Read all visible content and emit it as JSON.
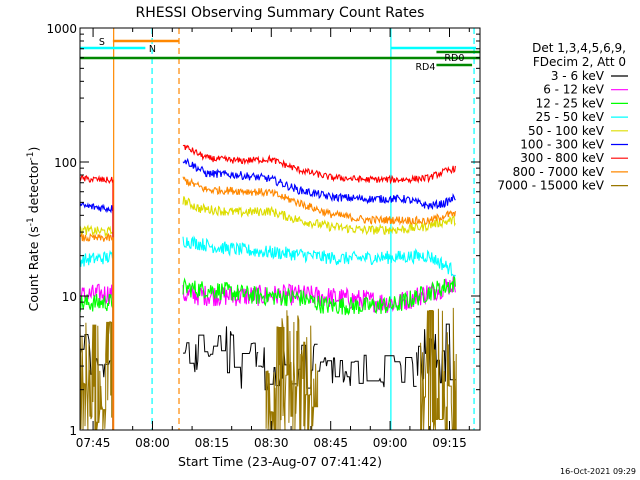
{
  "chart_data": {
    "type": "line",
    "title": "RHESSI Observing Summary Count Rates",
    "xlabel": "Start Time (23-Aug-07 07:41:42)",
    "ylabel_main": "Count Rate (s",
    "ylabel_sup": "-1",
    "ylabel_tail": " detector",
    "ylabel_close": ")",
    "y_scale": "log",
    "ylim": [
      1,
      1000
    ],
    "y_ticks": [
      {
        "v": 1,
        "label": "1"
      },
      {
        "v": 10,
        "label": "10"
      },
      {
        "v": 100,
        "label": "100"
      },
      {
        "v": 1000,
        "label": "1000"
      }
    ],
    "x_range_min": [
      0,
      101
    ],
    "x_ticks": [
      {
        "m": 3.3,
        "label": "07:45"
      },
      {
        "m": 18.3,
        "label": "08:00"
      },
      {
        "m": 33.3,
        "label": "08:15"
      },
      {
        "m": 48.3,
        "label": "08:30"
      },
      {
        "m": 63.3,
        "label": "08:45"
      },
      {
        "m": 78.3,
        "label": "09:00"
      },
      {
        "m": 93.3,
        "label": "09:15"
      }
    ],
    "legend_header": [
      "Det 1,3,4,5,6,9,",
      "FDecim 2, Att 0"
    ],
    "series": [
      {
        "name": "3 - 6 keV",
        "color": "#000000",
        "segments": [
          {
            "start": 0,
            "end": 8,
            "base": 3.5,
            "noise": 0.22,
            "step": 0.25
          },
          {
            "start": 26,
            "end": 45,
            "base": 3.6,
            "noise": 0.25,
            "step": 0.25
          },
          {
            "start": 45,
            "end": 60,
            "base": 3.0,
            "noise": 0.18,
            "step": 0.25
          },
          {
            "start": 60,
            "end": 85,
            "base": 2.75,
            "noise": 0.12,
            "step": 0.25
          },
          {
            "start": 85,
            "end": 95,
            "base": 3.8,
            "noise": 0.25,
            "step": 0.25
          }
        ]
      },
      {
        "name": "6 - 12 keV",
        "color": "#ff00ff",
        "points": [
          [
            0,
            10
          ],
          [
            8,
            10.5
          ],
          [
            26,
            10.2
          ],
          [
            40,
            10.0
          ],
          [
            55,
            10.2
          ],
          [
            70,
            9.4
          ],
          [
            80,
            8.8
          ],
          [
            90,
            11.2
          ],
          [
            95,
            12.5
          ]
        ],
        "noise": 0.08
      },
      {
        "name": "12 - 25 keV",
        "color": "#00ff00",
        "points": [
          [
            0,
            8.8
          ],
          [
            8,
            9.0
          ],
          [
            26,
            11.5
          ],
          [
            35,
            11.0
          ],
          [
            45,
            10.0
          ],
          [
            55,
            9.8
          ],
          [
            62,
            8.5
          ],
          [
            72,
            8.4
          ],
          [
            80,
            8.6
          ],
          [
            90,
            11.2
          ],
          [
            95,
            12.5
          ]
        ],
        "noise": 0.07
      },
      {
        "name": "25 - 50 keV",
        "color": "#00ffff",
        "points": [
          [
            0,
            18.5
          ],
          [
            8,
            19.5
          ],
          [
            26,
            26
          ],
          [
            35,
            23
          ],
          [
            45,
            21.5
          ],
          [
            55,
            20.5
          ],
          [
            65,
            19
          ],
          [
            80,
            19.5
          ],
          [
            88,
            20
          ],
          [
            95,
            15
          ]
        ],
        "noise": 0.05
      },
      {
        "name": "50 - 100 keV",
        "color": "#dddd00",
        "points": [
          [
            0,
            31
          ],
          [
            8,
            30
          ],
          [
            26,
            52
          ],
          [
            30,
            45
          ],
          [
            40,
            42
          ],
          [
            48,
            43
          ],
          [
            55,
            37
          ],
          [
            63,
            33
          ],
          [
            72,
            31
          ],
          [
            82,
            31.5
          ],
          [
            87,
            33
          ],
          [
            90,
            35
          ],
          [
            95,
            37
          ]
        ],
        "noise": 0.035
      },
      {
        "name": "100 - 300 keV",
        "color": "#0000ff",
        "points": [
          [
            0,
            47
          ],
          [
            8,
            45
          ],
          [
            26,
            105
          ],
          [
            32,
            82
          ],
          [
            40,
            80
          ],
          [
            48,
            75
          ],
          [
            55,
            62
          ],
          [
            63,
            55
          ],
          [
            72,
            53
          ],
          [
            82,
            53
          ],
          [
            88,
            47
          ],
          [
            92,
            49
          ],
          [
            95,
            55
          ]
        ],
        "noise": 0.03
      },
      {
        "name": "300 - 800 keV",
        "color": "#ff0000",
        "points": [
          [
            0,
            75
          ],
          [
            8,
            73
          ],
          [
            26,
            132
          ],
          [
            32,
            107
          ],
          [
            40,
            102
          ],
          [
            48,
            105
          ],
          [
            55,
            88
          ],
          [
            63,
            77
          ],
          [
            72,
            74
          ],
          [
            82,
            74
          ],
          [
            88,
            76
          ],
          [
            92,
            85
          ],
          [
            95,
            90
          ]
        ],
        "noise": 0.025
      },
      {
        "name": "800 - 7000 keV",
        "color": "#ff8800",
        "points": [
          [
            0,
            27
          ],
          [
            8,
            27
          ],
          [
            26,
            74
          ],
          [
            32,
            62
          ],
          [
            40,
            61
          ],
          [
            48,
            59
          ],
          [
            55,
            50
          ],
          [
            63,
            41
          ],
          [
            72,
            37
          ],
          [
            82,
            37
          ],
          [
            88,
            36
          ],
          [
            92,
            40
          ],
          [
            95,
            41
          ]
        ],
        "noise": 0.03
      },
      {
        "name": "7000 - 15000 keV",
        "color": "#997700",
        "segments": [
          {
            "start": 0,
            "end": 8,
            "base": 2.2,
            "noise": 0.5,
            "step": 0.25
          },
          {
            "start": 47,
            "end": 60,
            "base": 2.0,
            "noise": 0.6,
            "step": 0.25
          },
          {
            "start": 86,
            "end": 95,
            "base": 2.1,
            "noise": 0.6,
            "step": 0.25
          }
        ]
      }
    ],
    "markers": {
      "saa_label": "S",
      "saa_color": "#ff8800",
      "saa_start": 8.3,
      "saa_end": 25.0,
      "night_label": "N",
      "night_color": "#00ffff",
      "night_intervals": [
        [
          0,
          16.5
        ],
        [
          78.5,
          100
        ]
      ],
      "night_bar_x_start": 16.5,
      "green_bar_color": "#008800",
      "green_bar_range": [
        0,
        101
      ],
      "rd0_label": "RD0",
      "rd0_start": 90,
      "rd0_end": 101,
      "rd4_label": "RD4",
      "rd4_start": 90,
      "rd4_end": 99,
      "dashed_lines": [
        {
          "m": 8.5,
          "color": "#ff8800",
          "style": "solid"
        },
        {
          "m": 18.2,
          "color": "#00ffff",
          "style": "dash"
        },
        {
          "m": 25.0,
          "color": "#ff8800",
          "style": "dash"
        },
        {
          "m": 78.5,
          "color": "#00ffff",
          "style": "solid"
        },
        {
          "m": 99.5,
          "color": "#00ffff",
          "style": "dash"
        }
      ]
    }
  },
  "footer": {
    "date_stamp": "16-Oct-2021 09:29"
  }
}
